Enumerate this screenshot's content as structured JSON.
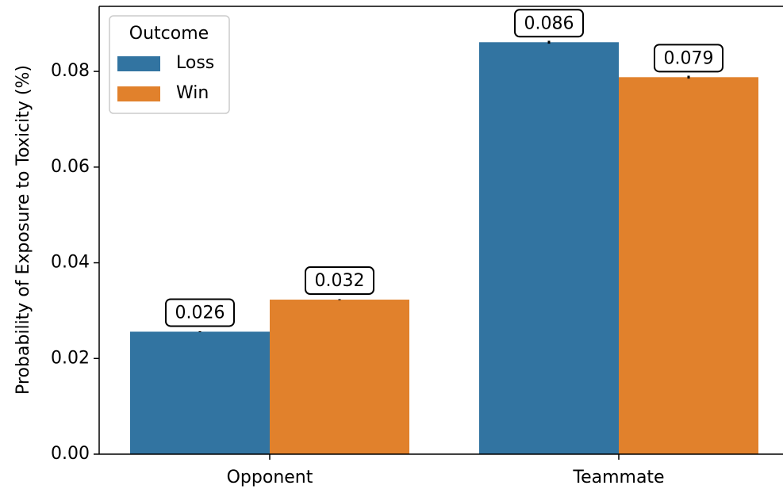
{
  "chart_data": {
    "type": "bar",
    "ylabel": "Probability of Exposure to Toxicity (%)",
    "categories": [
      "Opponent",
      "Teammate"
    ],
    "series": [
      {
        "name": "Loss",
        "color": "#3274a1",
        "values": [
          0.0256,
          0.0861
        ],
        "errors": [
          0.0001,
          0.0003
        ],
        "value_labels": [
          "0.026",
          "0.086"
        ]
      },
      {
        "name": "Win",
        "color": "#e1812c",
        "values": [
          0.0323,
          0.0788
        ],
        "errors": [
          0.0001,
          0.0003
        ],
        "value_labels": [
          "0.032",
          "0.079"
        ]
      }
    ],
    "legend_title": "Outcome",
    "legend": "upper left",
    "ylim": [
      0,
      0.0936
    ],
    "yticks": [
      {
        "value": 0,
        "label": "0.00"
      },
      {
        "value": 0.02,
        "label": "0.02"
      },
      {
        "value": 0.04,
        "label": "0.04"
      },
      {
        "value": 0.06,
        "label": "0.06"
      },
      {
        "value": 0.08,
        "label": "0.08"
      }
    ]
  }
}
